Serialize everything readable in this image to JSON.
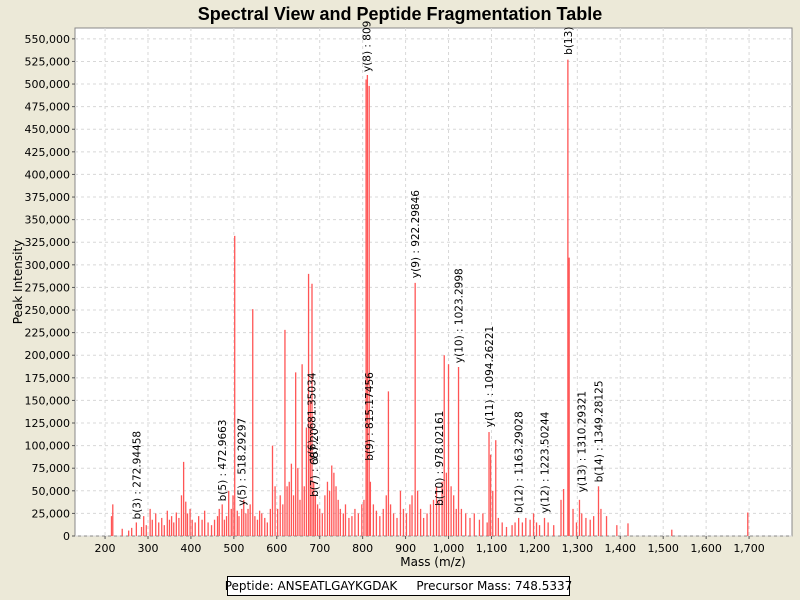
{
  "chart_data": {
    "type": "bar",
    "title": "Spectral View and Peptide Fragmentation Table",
    "xlabel": "Mass (m/z)",
    "ylabel": "Peak Intensity",
    "xlim": [
      130,
      1800
    ],
    "ylim": [
      0,
      562000
    ],
    "x_ticks": [
      200,
      300,
      400,
      500,
      600,
      700,
      800,
      900,
      1000,
      1100,
      1200,
      1300,
      1400,
      1500,
      1600,
      1700
    ],
    "x_tick_labels": [
      "200",
      "300",
      "400",
      "500",
      "600",
      "700",
      "800",
      "900",
      "1,000",
      "1,100",
      "1,200",
      "1,300",
      "1,400",
      "1,500",
      "1,600",
      "1,700"
    ],
    "y_ticks": [
      0,
      25000,
      50000,
      75000,
      100000,
      125000,
      150000,
      175000,
      200000,
      225000,
      250000,
      275000,
      300000,
      325000,
      350000,
      375000,
      400000,
      425000,
      450000,
      475000,
      500000,
      525000,
      550000
    ],
    "y_tick_labels": [
      "0",
      "25,000",
      "50,000",
      "75,000",
      "100,000",
      "125,000",
      "150,000",
      "175,000",
      "200,000",
      "225,000",
      "250,000",
      "275,000",
      "300,000",
      "325,000",
      "350,000",
      "375,000",
      "400,000",
      "425,000",
      "450,000",
      "475,000",
      "500,000",
      "525,000",
      "550,000"
    ],
    "grid": true,
    "bar_color": "#ff5555",
    "series": [
      {
        "name": "spectrum",
        "peaks": [
          [
            215,
            22000
          ],
          [
            218,
            35000
          ],
          [
            240,
            8000
          ],
          [
            255,
            6000
          ],
          [
            262,
            9000
          ],
          [
            272.9,
            15000
          ],
          [
            285,
            10000
          ],
          [
            290,
            22000
          ],
          [
            296,
            12000
          ],
          [
            305,
            30000
          ],
          [
            310,
            18000
          ],
          [
            318,
            25000
          ],
          [
            325,
            15000
          ],
          [
            332,
            20000
          ],
          [
            338,
            12000
          ],
          [
            345,
            28000
          ],
          [
            350,
            18000
          ],
          [
            355,
            22000
          ],
          [
            360,
            15000
          ],
          [
            366,
            26000
          ],
          [
            372,
            20000
          ],
          [
            378,
            45000
          ],
          [
            383,
            82000
          ],
          [
            388,
            38000
          ],
          [
            392,
            25000
          ],
          [
            398,
            30000
          ],
          [
            403,
            18000
          ],
          [
            410,
            15000
          ],
          [
            418,
            22000
          ],
          [
            426,
            18000
          ],
          [
            432,
            28000
          ],
          [
            440,
            15000
          ],
          [
            448,
            12000
          ],
          [
            455,
            18000
          ],
          [
            462,
            22000
          ],
          [
            466,
            30000
          ],
          [
            472.9,
            35000
          ],
          [
            478,
            18000
          ],
          [
            483,
            22000
          ],
          [
            488,
            50000
          ],
          [
            494,
            30000
          ],
          [
            498,
            45000
          ],
          [
            502,
            332000
          ],
          [
            508,
            28000
          ],
          [
            512,
            22000
          ],
          [
            518.3,
            30000
          ],
          [
            523,
            40000
          ],
          [
            528,
            25000
          ],
          [
            533,
            30000
          ],
          [
            538,
            35000
          ],
          [
            544,
            251000
          ],
          [
            549,
            22000
          ],
          [
            555,
            18000
          ],
          [
            560,
            28000
          ],
          [
            565,
            25000
          ],
          [
            572,
            20000
          ],
          [
            578,
            15000
          ],
          [
            585,
            30000
          ],
          [
            590,
            100000
          ],
          [
            596,
            55000
          ],
          [
            602,
            30000
          ],
          [
            608,
            45000
          ],
          [
            614,
            35000
          ],
          [
            619,
            228000
          ],
          [
            624,
            55000
          ],
          [
            629,
            60000
          ],
          [
            634,
            80000
          ],
          [
            639,
            45000
          ],
          [
            644,
            181000
          ],
          [
            649,
            75000
          ],
          [
            654,
            40000
          ],
          [
            659,
            190000
          ],
          [
            664,
            55000
          ],
          [
            669,
            120000
          ],
          [
            674,
            290000
          ],
          [
            678,
            150000
          ],
          [
            682,
            279000
          ],
          [
            686,
            60000
          ],
          [
            690,
            45000
          ],
          [
            695,
            35000
          ],
          [
            700,
            30000
          ],
          [
            706,
            25000
          ],
          [
            712,
            45000
          ],
          [
            718,
            60000
          ],
          [
            723,
            50000
          ],
          [
            728,
            78000
          ],
          [
            733,
            70000
          ],
          [
            738,
            55000
          ],
          [
            743,
            40000
          ],
          [
            748,
            30000
          ],
          [
            755,
            25000
          ],
          [
            760,
            35000
          ],
          [
            768,
            20000
          ],
          [
            775,
            22000
          ],
          [
            782,
            30000
          ],
          [
            790,
            25000
          ],
          [
            798,
            35000
          ],
          [
            803,
            40000
          ],
          [
            808,
            505000
          ],
          [
            811,
            510000
          ],
          [
            815.2,
            498000
          ],
          [
            818,
            60000
          ],
          [
            825,
            35000
          ],
          [
            832,
            28000
          ],
          [
            840,
            22000
          ],
          [
            848,
            30000
          ],
          [
            855,
            45000
          ],
          [
            860,
            160000
          ],
          [
            865,
            35000
          ],
          [
            872,
            25000
          ],
          [
            880,
            20000
          ],
          [
            888,
            50000
          ],
          [
            895,
            30000
          ],
          [
            902,
            25000
          ],
          [
            910,
            35000
          ],
          [
            915,
            45000
          ],
          [
            922.3,
            280000
          ],
          [
            928,
            50000
          ],
          [
            935,
            30000
          ],
          [
            942,
            20000
          ],
          [
            950,
            25000
          ],
          [
            958,
            35000
          ],
          [
            965,
            40000
          ],
          [
            972,
            55000
          ],
          [
            978,
            40000
          ],
          [
            985,
            60000
          ],
          [
            990,
            200000
          ],
          [
            995,
            70000
          ],
          [
            1000,
            190000
          ],
          [
            1006,
            55000
          ],
          [
            1012,
            45000
          ],
          [
            1018,
            30000
          ],
          [
            1023.3,
            187000
          ],
          [
            1030,
            30000
          ],
          [
            1040,
            25000
          ],
          [
            1050,
            20000
          ],
          [
            1060,
            25000
          ],
          [
            1072,
            18000
          ],
          [
            1080,
            25000
          ],
          [
            1090,
            15000
          ],
          [
            1094.3,
            115000
          ],
          [
            1098,
            90000
          ],
          [
            1103,
            50000
          ],
          [
            1110,
            106000
          ],
          [
            1116,
            20000
          ],
          [
            1125,
            15000
          ],
          [
            1135,
            10000
          ],
          [
            1148,
            12000
          ],
          [
            1155,
            15000
          ],
          [
            1163.3,
            20000
          ],
          [
            1172,
            15000
          ],
          [
            1180,
            20000
          ],
          [
            1190,
            18000
          ],
          [
            1198,
            25000
          ],
          [
            1205,
            15000
          ],
          [
            1212,
            12000
          ],
          [
            1223.5,
            20000
          ],
          [
            1232,
            15000
          ],
          [
            1245,
            12000
          ],
          [
            1262,
            40000
          ],
          [
            1268,
            52000
          ],
          [
            1278,
            527000
          ],
          [
            1281,
            308000
          ],
          [
            1290,
            30000
          ],
          [
            1298,
            15000
          ],
          [
            1305,
            40000
          ],
          [
            1310.3,
            25000
          ],
          [
            1320,
            20000
          ],
          [
            1330,
            18000
          ],
          [
            1338,
            22000
          ],
          [
            1349.3,
            55000
          ],
          [
            1355,
            30000
          ],
          [
            1368,
            22000
          ],
          [
            1392,
            12000
          ],
          [
            1418,
            14000
          ],
          [
            1520,
            7000
          ],
          [
            1697,
            26000
          ]
        ]
      }
    ],
    "annotations": [
      {
        "label": "b(3) : 272.94458",
        "x": 272.94,
        "y": 15000
      },
      {
        "label": "b(5) : 472.9663",
        "x": 472.97,
        "y": 35000
      },
      {
        "label": "y(5) : 518.29297",
        "x": 518.29,
        "y": 30000
      },
      {
        "label": "b(7) : 687.20",
        "x": 687.2,
        "y": 40000
      },
      {
        "label": "y(6) : 681.35034",
        "x": 681.35,
        "y": 80000
      },
      {
        "label": "b(9) : 815.17456",
        "x": 815.17,
        "y": 80000
      },
      {
        "label": "y(8) : 809",
        "x": 809.0,
        "y": 510000
      },
      {
        "label": "y(9) : 922.29846",
        "x": 922.3,
        "y": 282000
      },
      {
        "label": "b(10) : 978.02161",
        "x": 978.02,
        "y": 30000
      },
      {
        "label": "y(10) : 1023.2998",
        "x": 1023.3,
        "y": 188000
      },
      {
        "label": "y(11) : 1094.26221",
        "x": 1094.26,
        "y": 117000
      },
      {
        "label": "b(12) : 1163.29028",
        "x": 1163.29,
        "y": 22000
      },
      {
        "label": "y(12) : 1223.50244",
        "x": 1223.5,
        "y": 22000
      },
      {
        "label": "b(13)",
        "x": 1278.0,
        "y": 529000
      },
      {
        "label": "y(13) : 1310.29321",
        "x": 1310.29,
        "y": 45000
      },
      {
        "label": "b(14) : 1349.28125",
        "x": 1349.28,
        "y": 56000
      }
    ]
  },
  "legend": {
    "peptide": "Peptide: ANSEATLGAYKGDAK",
    "precursor": "Precursor Mass: 748.5337"
  }
}
